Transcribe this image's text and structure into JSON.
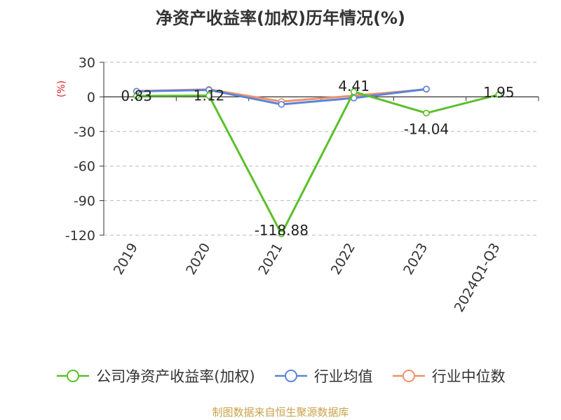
{
  "chart_data": {
    "type": "line",
    "title": "净资产收益率(加权)历年情况(%)",
    "unit_label": "(%)",
    "categories": [
      "2019",
      "2020",
      "2021",
      "2022",
      "2023",
      "2024Q1-Q3"
    ],
    "ylim": [
      -120,
      30
    ],
    "yticks": [
      "30",
      "0",
      "-30",
      "-60",
      "-90",
      "-120"
    ],
    "ytick_values": [
      30,
      0,
      -30,
      -60,
      -90,
      -120
    ],
    "grid": true,
    "legend_position": "bottom",
    "series": [
      {
        "name": "公司净资产收益率(加权)",
        "color": "#5bbf2a",
        "values": [
          0.83,
          1.12,
          -118.88,
          4.41,
          -14.04,
          1.95
        ],
        "labels": [
          "0.83",
          "1.12",
          "-118.88",
          "4.41",
          "-14.04",
          "1.95"
        ]
      },
      {
        "name": "行业均值",
        "color": "#5a84d8",
        "values": [
          4.8,
          6.0,
          -6.5,
          -1.0,
          6.8,
          null
        ]
      },
      {
        "name": "行业中位数",
        "color": "#f0906a",
        "values": [
          5.0,
          6.5,
          -4.0,
          1.0,
          6.5,
          null
        ]
      }
    ]
  },
  "source": "制图数据来自恒生聚源数据库"
}
